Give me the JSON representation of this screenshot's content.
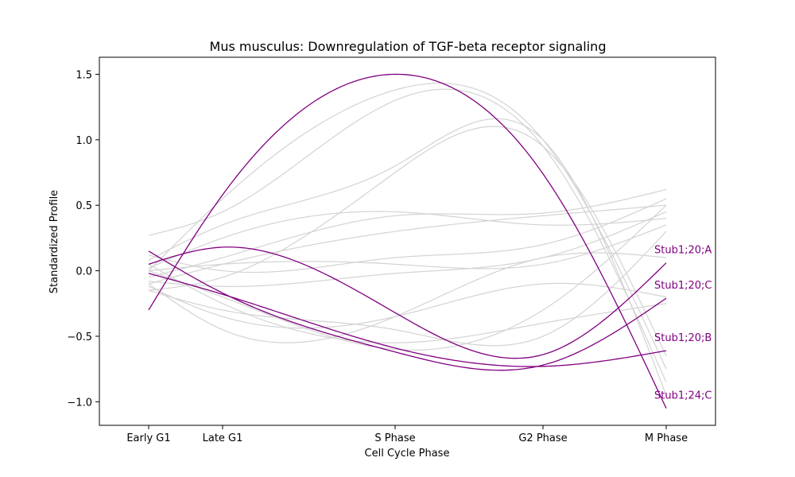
{
  "chart_data": {
    "type": "line",
    "title": "Mus musculus: Downregulation of TGF-beta receptor signaling",
    "xlabel": "Cell Cycle Phase",
    "ylabel": "Standardized Profile",
    "categories": [
      "Early G1",
      "Late G1",
      "S Phase",
      "G2 Phase",
      "M Phase"
    ],
    "x": [
      0,
      0.6,
      2.0,
      3.2,
      4.2
    ],
    "xlim": [
      -0.4,
      4.6
    ],
    "ylim": [
      -1.18,
      1.63
    ],
    "yticks": [
      -1.0,
      -0.5,
      0.0,
      0.5,
      1.0,
      1.5
    ],
    "ytick_labels": [
      "−1.0",
      "−0.5",
      "0.0",
      "0.5",
      "1.0",
      "1.5"
    ],
    "grid": false,
    "colors": {
      "background": "#d3d3d3",
      "highlight": "#800080"
    },
    "highlight_series": [
      {
        "name": "Stub1;20;A",
        "values": [
          0.05,
          0.18,
          -0.32,
          -0.64,
          0.06
        ]
      },
      {
        "name": "Stub1;20;C",
        "values": [
          0.15,
          -0.17,
          -0.62,
          -0.72,
          -0.21
        ]
      },
      {
        "name": "Stub1;20;B",
        "values": [
          -0.02,
          -0.18,
          -0.59,
          -0.73,
          -0.61
        ]
      },
      {
        "name": "Stub1;24;C",
        "values": [
          -0.3,
          0.58,
          1.5,
          0.74,
          -1.05
        ]
      }
    ],
    "background_series": [
      {
        "values": [
          0.27,
          0.45,
          1.3,
          0.95,
          -0.85
        ]
      },
      {
        "values": [
          0.0,
          0.55,
          1.38,
          1.0,
          -0.75
        ]
      },
      {
        "values": [
          0.08,
          0.35,
          0.8,
          1.0,
          -0.95
        ]
      },
      {
        "values": [
          -0.15,
          -0.05,
          0.75,
          0.95,
          -0.65
        ]
      },
      {
        "values": [
          -0.05,
          0.1,
          0.42,
          0.44,
          0.62
        ]
      },
      {
        "values": [
          0.02,
          0.25,
          0.45,
          0.35,
          0.4
        ]
      },
      {
        "values": [
          -0.1,
          0.05,
          0.3,
          0.42,
          0.5
        ]
      },
      {
        "values": [
          0.12,
          0.0,
          0.1,
          0.2,
          0.55
        ]
      },
      {
        "values": [
          -0.08,
          -0.12,
          -0.02,
          0.1,
          0.45
        ]
      },
      {
        "values": [
          0.0,
          0.05,
          0.05,
          0.05,
          0.35
        ]
      },
      {
        "values": [
          -0.12,
          -0.35,
          -0.35,
          -0.1,
          -0.2
        ]
      },
      {
        "values": [
          -0.15,
          -0.3,
          -0.45,
          -0.5,
          0.3
        ]
      },
      {
        "values": [
          0.05,
          -0.25,
          -0.55,
          -0.4,
          -0.25
        ]
      },
      {
        "values": [
          -0.1,
          -0.45,
          -0.35,
          0.1,
          0.1
        ]
      },
      {
        "values": [
          0.0,
          -0.2,
          -0.6,
          -0.3,
          0.5
        ]
      }
    ]
  }
}
